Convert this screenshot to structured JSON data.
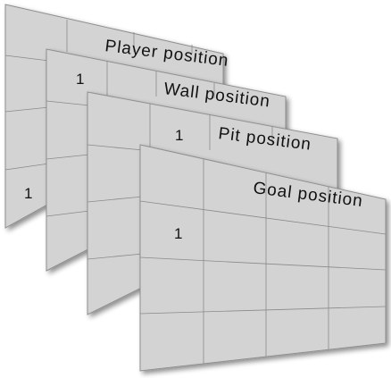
{
  "layers": [
    {
      "name": "player",
      "label": "Player position",
      "marker": "1"
    },
    {
      "name": "wall",
      "label": "Wall position",
      "marker": "1"
    },
    {
      "name": "pit",
      "label": "Pit position",
      "marker": "1"
    },
    {
      "name": "goal",
      "label": "Goal position",
      "marker": "1"
    }
  ],
  "colors": {
    "panel": "#d3d3d3",
    "grid": "#8a8a8a",
    "text": "#111111"
  }
}
